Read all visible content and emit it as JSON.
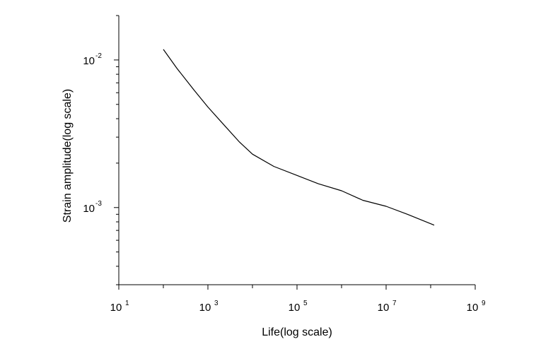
{
  "chart_data": {
    "type": "line",
    "title": "",
    "xlabel": "Life(log scale)",
    "ylabel": "Strain amplitude(log scale)",
    "x_scale": "log",
    "y_scale": "log",
    "xlim": [
      10,
      1000000000
    ],
    "ylim": [
      0.0003,
      0.02
    ],
    "grid": false,
    "x_ticks": [
      {
        "base": "10",
        "exp": "1",
        "value": 10
      },
      {
        "base": "10",
        "exp": "3",
        "value": 1000
      },
      {
        "base": "10",
        "exp": "5",
        "value": 100000
      },
      {
        "base": "10",
        "exp": "7",
        "value": 10000000
      },
      {
        "base": "10",
        "exp": "9",
        "value": 1000000000
      }
    ],
    "y_ticks": [
      {
        "base": "10",
        "exp": "-2",
        "value": 0.01
      },
      {
        "base": "10",
        "exp": "-3",
        "value": 0.001
      }
    ],
    "series": [
      {
        "color": "#000000",
        "x": [
          100,
          200,
          500,
          1000,
          2000,
          5000,
          10000,
          30000,
          100000,
          300000,
          1000000,
          3000000,
          10000000,
          30000000,
          120000000
        ],
        "y": [
          0.0118,
          0.0088,
          0.0062,
          0.0048,
          0.0038,
          0.0028,
          0.0023,
          0.0019,
          0.00165,
          0.00145,
          0.0013,
          0.00112,
          0.00102,
          0.0009,
          0.00076
        ]
      }
    ]
  }
}
